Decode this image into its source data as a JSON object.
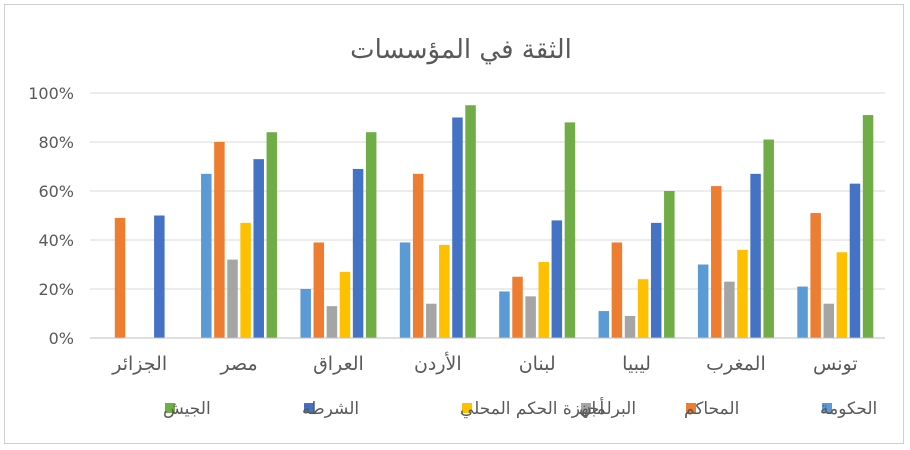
{
  "chart_data": {
    "type": "bar",
    "title": "الثقة في المؤسسات",
    "xlabel": "",
    "ylabel": "",
    "ylim": [
      0,
      100
    ],
    "yticks": [
      "0%",
      "20%",
      "40%",
      "60%",
      "80%",
      "100%"
    ],
    "ytick_values": [
      0,
      20,
      40,
      60,
      80,
      100
    ],
    "grid": true,
    "legend_position": "bottom",
    "x_direction": "right-to-left",
    "categories": [
      "تونس",
      "المغرب",
      "ليبيا",
      "لبنان",
      "الأردن",
      "العراق",
      "مصر",
      "الجزائر"
    ],
    "series": [
      {
        "name": "الحكومة",
        "color": "#5B9BD5",
        "values": [
          21,
          30,
          11,
          19,
          39,
          20,
          67,
          null
        ]
      },
      {
        "name": "المحاكم",
        "color": "#ED7D31",
        "values": [
          51,
          62,
          39,
          25,
          67,
          39,
          80,
          49
        ]
      },
      {
        "name": "البرلمان",
        "color": "#A5A5A5",
        "values": [
          14,
          23,
          9,
          17,
          14,
          13,
          32,
          null
        ]
      },
      {
        "name": "أجهزة الحكم المحلي",
        "color": "#FFC000",
        "values": [
          35,
          36,
          24,
          31,
          38,
          27,
          47,
          null
        ]
      },
      {
        "name": "الشرطة",
        "color": "#4472C4",
        "values": [
          63,
          67,
          47,
          48,
          90,
          69,
          73,
          50
        ]
      },
      {
        "name": "الجيش",
        "color": "#70AD47",
        "values": [
          91,
          81,
          60,
          88,
          95,
          84,
          84,
          null
        ]
      }
    ]
  }
}
